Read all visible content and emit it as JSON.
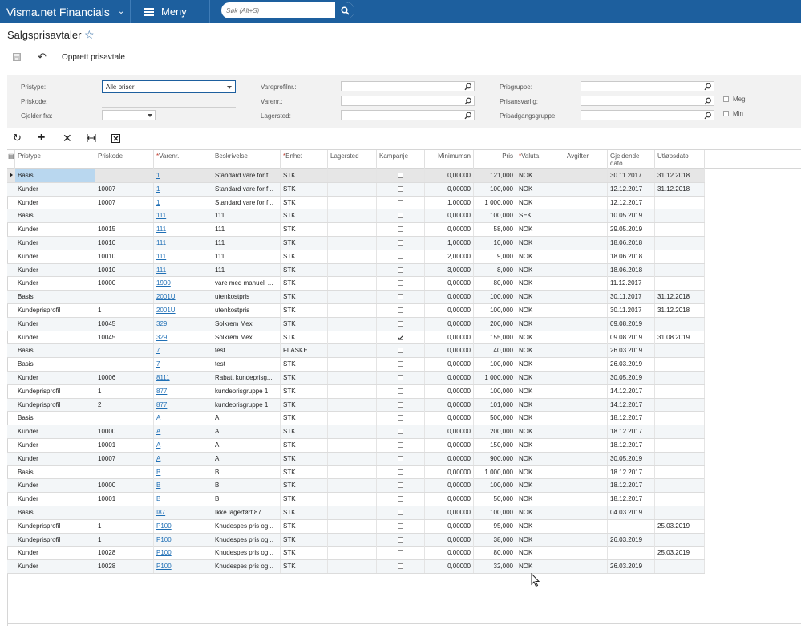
{
  "app": {
    "brand": "Visma.net Financials",
    "menu_label": "Meny",
    "search_placeholder": "Søk (Alt+S)"
  },
  "page": {
    "title": "Salgsprisavtaler",
    "create_label": "Opprett prisavtale"
  },
  "filters": {
    "pristype_label": "Pristype:",
    "pristype_value": "Alle priser",
    "priskode_label": "Priskode:",
    "gjelder_fra_label": "Gjelder fra:",
    "vareprofil_label": "Vareprofilnr.:",
    "varenr_label": "Varenr.:",
    "lagersted_label": "Lagersted:",
    "prisgruppe_label": "Prisgruppe:",
    "prisansvarlig_label": "Prisansvarlig:",
    "prisadgang_label": "Prisadgangsgruppe:",
    "meg_label": "Meg",
    "min_label": "Min"
  },
  "columns": {
    "pristype": "Pristype",
    "priskode": "Priskode",
    "varenr": "Varenr.",
    "beskrivelse": "Beskrivelse",
    "enhet": "Enhet",
    "lagersted": "Lagersted",
    "kampanje": "Kampanje",
    "minimumsn": "Minimumsn",
    "pris": "Pris",
    "valuta": "Valuta",
    "avgifter": "Avgifter",
    "gjeldende_1": "Gjeldende",
    "gjeldende_2": "dato",
    "utlop": "Utløpsdato"
  },
  "rows": [
    {
      "type": "Basis",
      "code": "",
      "item": "1",
      "desc": "Standard vare for f...",
      "unit": "STK",
      "camp": false,
      "min": "0,00000",
      "price": "121,000",
      "cur": "NOK",
      "from": "30.11.2017",
      "to": "31.12.2018"
    },
    {
      "type": "Kunder",
      "code": "10007",
      "item": "1",
      "desc": "Standard vare for f...",
      "unit": "STK",
      "camp": false,
      "min": "0,00000",
      "price": "100,000",
      "cur": "NOK",
      "from": "12.12.2017",
      "to": "31.12.2018"
    },
    {
      "type": "Kunder",
      "code": "10007",
      "item": "1",
      "desc": "Standard vare for f...",
      "unit": "STK",
      "camp": false,
      "min": "1,00000",
      "price": "1 000,000",
      "cur": "NOK",
      "from": "12.12.2017",
      "to": ""
    },
    {
      "type": "Basis",
      "code": "",
      "item": "111",
      "desc": "111",
      "unit": "STK",
      "camp": false,
      "min": "0,00000",
      "price": "100,000",
      "cur": "SEK",
      "from": "10.05.2019",
      "to": ""
    },
    {
      "type": "Kunder",
      "code": "10015",
      "item": "111",
      "desc": "111",
      "unit": "STK",
      "camp": false,
      "min": "0,00000",
      "price": "58,000",
      "cur": "NOK",
      "from": "29.05.2019",
      "to": ""
    },
    {
      "type": "Kunder",
      "code": "10010",
      "item": "111",
      "desc": "111",
      "unit": "STK",
      "camp": false,
      "min": "1,00000",
      "price": "10,000",
      "cur": "NOK",
      "from": "18.06.2018",
      "to": ""
    },
    {
      "type": "Kunder",
      "code": "10010",
      "item": "111",
      "desc": "111",
      "unit": "STK",
      "camp": false,
      "min": "2,00000",
      "price": "9,000",
      "cur": "NOK",
      "from": "18.06.2018",
      "to": ""
    },
    {
      "type": "Kunder",
      "code": "10010",
      "item": "111",
      "desc": "111",
      "unit": "STK",
      "camp": false,
      "min": "3,00000",
      "price": "8,000",
      "cur": "NOK",
      "from": "18.06.2018",
      "to": ""
    },
    {
      "type": "Kunder",
      "code": "10000",
      "item": "1900",
      "desc": "vare med manuell ...",
      "unit": "STK",
      "camp": false,
      "min": "0,00000",
      "price": "80,000",
      "cur": "NOK",
      "from": "11.12.2017",
      "to": ""
    },
    {
      "type": "Basis",
      "code": "",
      "item": "2001U",
      "desc": "utenkostpris",
      "unit": "STK",
      "camp": false,
      "min": "0,00000",
      "price": "100,000",
      "cur": "NOK",
      "from": "30.11.2017",
      "to": "31.12.2018"
    },
    {
      "type": "Kundeprisprofil",
      "code": "1",
      "item": "2001U",
      "desc": "utenkostpris",
      "unit": "STK",
      "camp": false,
      "min": "0,00000",
      "price": "100,000",
      "cur": "NOK",
      "from": "30.11.2017",
      "to": "31.12.2018"
    },
    {
      "type": "Kunder",
      "code": "10045",
      "item": "329",
      "desc": "Solkrem Mexi",
      "unit": "STK",
      "camp": false,
      "min": "0,00000",
      "price": "200,000",
      "cur": "NOK",
      "from": "09.08.2019",
      "to": ""
    },
    {
      "type": "Kunder",
      "code": "10045",
      "item": "329",
      "desc": "Solkrem Mexi",
      "unit": "STK",
      "camp": true,
      "min": "0,00000",
      "price": "155,000",
      "cur": "NOK",
      "from": "09.08.2019",
      "to": "31.08.2019"
    },
    {
      "type": "Basis",
      "code": "",
      "item": "7",
      "desc": "test",
      "unit": "FLASKE",
      "camp": false,
      "min": "0,00000",
      "price": "40,000",
      "cur": "NOK",
      "from": "26.03.2019",
      "to": ""
    },
    {
      "type": "Basis",
      "code": "",
      "item": "7",
      "desc": "test",
      "unit": "STK",
      "camp": false,
      "min": "0,00000",
      "price": "100,000",
      "cur": "NOK",
      "from": "26.03.2019",
      "to": ""
    },
    {
      "type": "Kunder",
      "code": "10006",
      "item": "8111",
      "desc": "Rabatt kundeprisg...",
      "unit": "STK",
      "camp": false,
      "min": "0,00000",
      "price": "1 000,000",
      "cur": "NOK",
      "from": "30.05.2019",
      "to": ""
    },
    {
      "type": "Kundeprisprofil",
      "code": "1",
      "item": "877",
      "desc": "kundeprisgruppe 1",
      "unit": "STK",
      "camp": false,
      "min": "0,00000",
      "price": "100,000",
      "cur": "NOK",
      "from": "14.12.2017",
      "to": ""
    },
    {
      "type": "Kundeprisprofil",
      "code": "2",
      "item": "877",
      "desc": "kundeprisgruppe 1",
      "unit": "STK",
      "camp": false,
      "min": "0,00000",
      "price": "101,000",
      "cur": "NOK",
      "from": "14.12.2017",
      "to": ""
    },
    {
      "type": "Basis",
      "code": "",
      "item": "A",
      "desc": "A",
      "unit": "STK",
      "camp": false,
      "min": "0,00000",
      "price": "500,000",
      "cur": "NOK",
      "from": "18.12.2017",
      "to": ""
    },
    {
      "type": "Kunder",
      "code": "10000",
      "item": "A",
      "desc": "A",
      "unit": "STK",
      "camp": false,
      "min": "0,00000",
      "price": "200,000",
      "cur": "NOK",
      "from": "18.12.2017",
      "to": ""
    },
    {
      "type": "Kunder",
      "code": "10001",
      "item": "A",
      "desc": "A",
      "unit": "STK",
      "camp": false,
      "min": "0,00000",
      "price": "150,000",
      "cur": "NOK",
      "from": "18.12.2017",
      "to": ""
    },
    {
      "type": "Kunder",
      "code": "10007",
      "item": "A",
      "desc": "A",
      "unit": "STK",
      "camp": false,
      "min": "0,00000",
      "price": "900,000",
      "cur": "NOK",
      "from": "30.05.2019",
      "to": ""
    },
    {
      "type": "Basis",
      "code": "",
      "item": "B",
      "desc": "B",
      "unit": "STK",
      "camp": false,
      "min": "0,00000",
      "price": "1 000,000",
      "cur": "NOK",
      "from": "18.12.2017",
      "to": ""
    },
    {
      "type": "Kunder",
      "code": "10000",
      "item": "B",
      "desc": "B",
      "unit": "STK",
      "camp": false,
      "min": "0,00000",
      "price": "100,000",
      "cur": "NOK",
      "from": "18.12.2017",
      "to": ""
    },
    {
      "type": "Kunder",
      "code": "10001",
      "item": "B",
      "desc": "B",
      "unit": "STK",
      "camp": false,
      "min": "0,00000",
      "price": "50,000",
      "cur": "NOK",
      "from": "18.12.2017",
      "to": ""
    },
    {
      "type": "Basis",
      "code": "",
      "item": "I87",
      "desc": "Ikke lagerført 87",
      "unit": "STK",
      "camp": false,
      "min": "0,00000",
      "price": "100,000",
      "cur": "NOK",
      "from": "04.03.2019",
      "to": ""
    },
    {
      "type": "Kundeprisprofil",
      "code": "1",
      "item": "P100",
      "desc": "Knudespes pris og...",
      "unit": "STK",
      "camp": false,
      "min": "0,00000",
      "price": "95,000",
      "cur": "NOK",
      "from": "",
      "to": "25.03.2019"
    },
    {
      "type": "Kundeprisprofil",
      "code": "1",
      "item": "P100",
      "desc": "Knudespes pris og...",
      "unit": "STK",
      "camp": false,
      "min": "0,00000",
      "price": "38,000",
      "cur": "NOK",
      "from": "26.03.2019",
      "to": ""
    },
    {
      "type": "Kunder",
      "code": "10028",
      "item": "P100",
      "desc": "Knudespes pris og...",
      "unit": "STK",
      "camp": false,
      "min": "0,00000",
      "price": "80,000",
      "cur": "NOK",
      "from": "",
      "to": "25.03.2019"
    },
    {
      "type": "Kunder",
      "code": "10028",
      "item": "P100",
      "desc": "Knudespes pris og...",
      "unit": "STK",
      "camp": false,
      "min": "0,00000",
      "price": "32,000",
      "cur": "NOK",
      "from": "26.03.2019",
      "to": ""
    }
  ],
  "icons": {
    "brand_chevron": "chevron-down-icon",
    "menu": "hamburger-icon",
    "search": "search-icon",
    "favorite": "star-icon",
    "save": "save-icon",
    "undo": "undo-icon",
    "refresh": "refresh-icon",
    "add": "plus-icon",
    "delete": "close-icon",
    "fit": "fit-columns-icon",
    "export": "export-excel-icon",
    "lookup": "search-icon"
  },
  "colors": {
    "topbar": "#1d5f9e",
    "link": "#1f6fb5",
    "required": "#c0392b",
    "selected": "#b9d7ef"
  }
}
